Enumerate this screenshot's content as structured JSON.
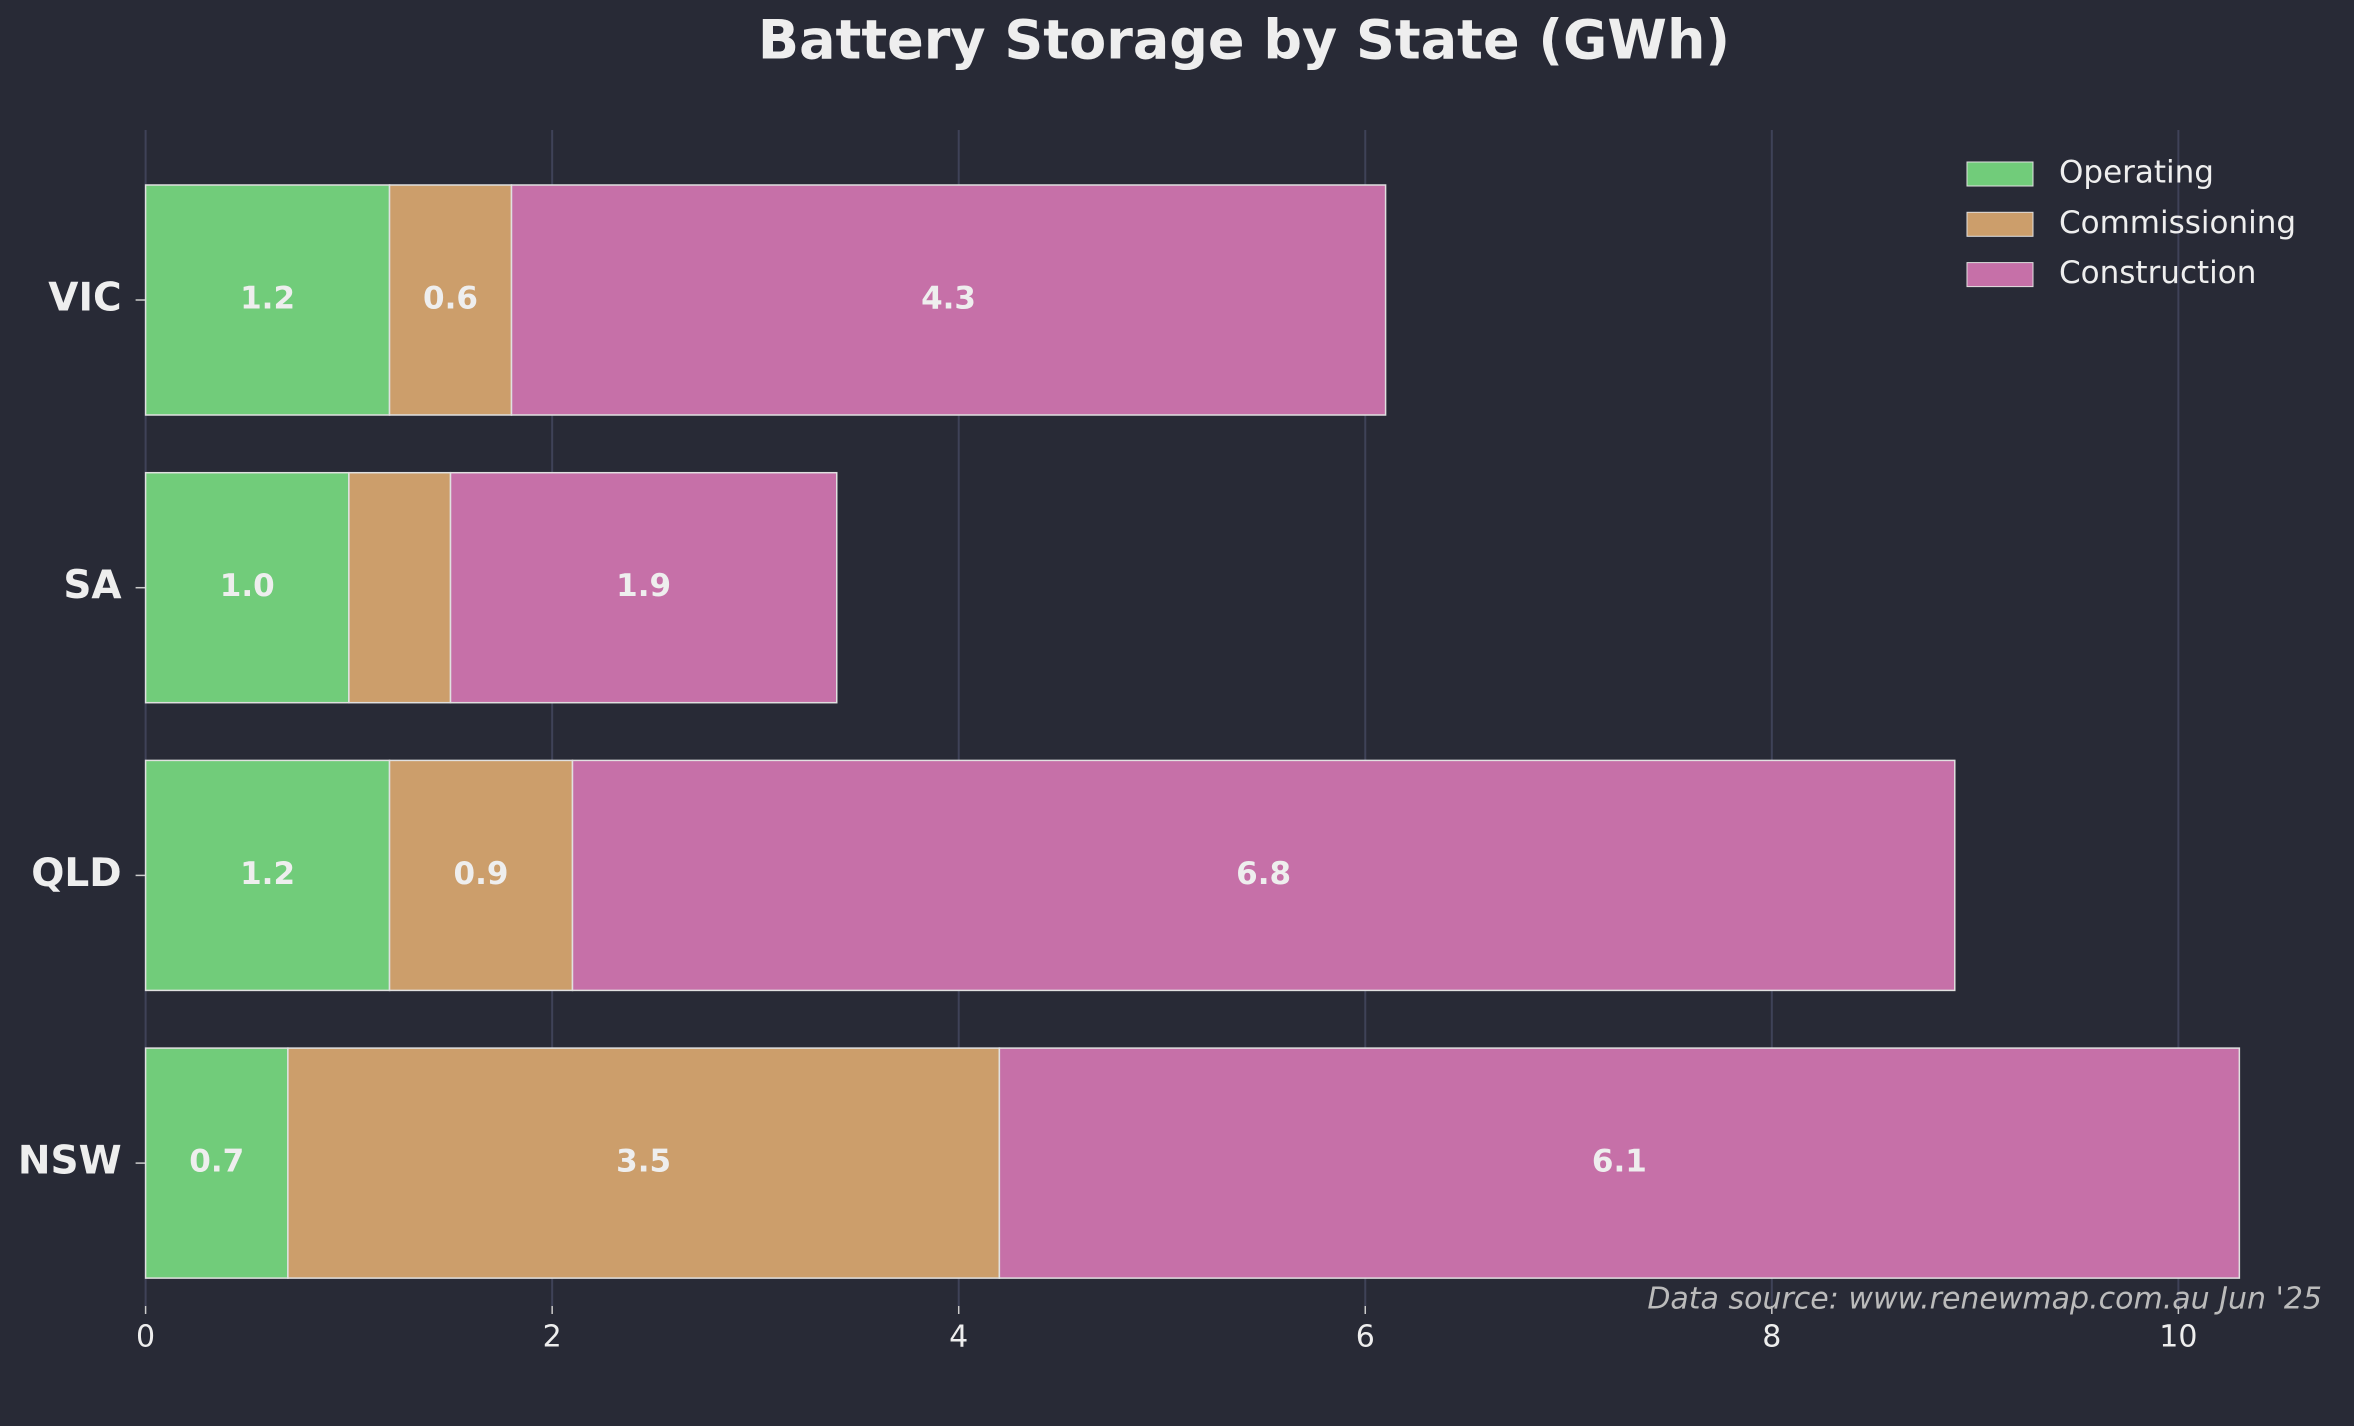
{
  "chart_data": {
    "type": "barh_stacked",
    "title": "Battery Storage by State (GWh)",
    "categories": [
      "VIC",
      "SA",
      "QLD",
      "NSW"
    ],
    "series": [
      {
        "name": "Operating",
        "color": "#71cc7a",
        "values": [
          1.2,
          1.0,
          1.2,
          0.7
        ],
        "value_labels": [
          "1.2",
          "1.0",
          "1.2",
          "0.7"
        ]
      },
      {
        "name": "Commissioning",
        "color": "#cc9e6b",
        "values": [
          0.6,
          0.5,
          0.9,
          3.5
        ],
        "value_labels": [
          "0.6",
          null,
          "0.9",
          "3.5"
        ]
      },
      {
        "name": "Construction",
        "color": "#c670a8",
        "values": [
          4.3,
          1.9,
          6.8,
          6.1
        ],
        "value_labels": [
          "4.3",
          "1.9",
          "6.8",
          "6.1"
        ]
      }
    ],
    "xlim": [
      0,
      10.8
    ],
    "xticks": [
      0,
      2,
      4,
      6,
      8,
      10
    ],
    "grid": true,
    "legend": "upper right",
    "annotation": "Data source: www.renewmap.com.au Jun '25"
  }
}
